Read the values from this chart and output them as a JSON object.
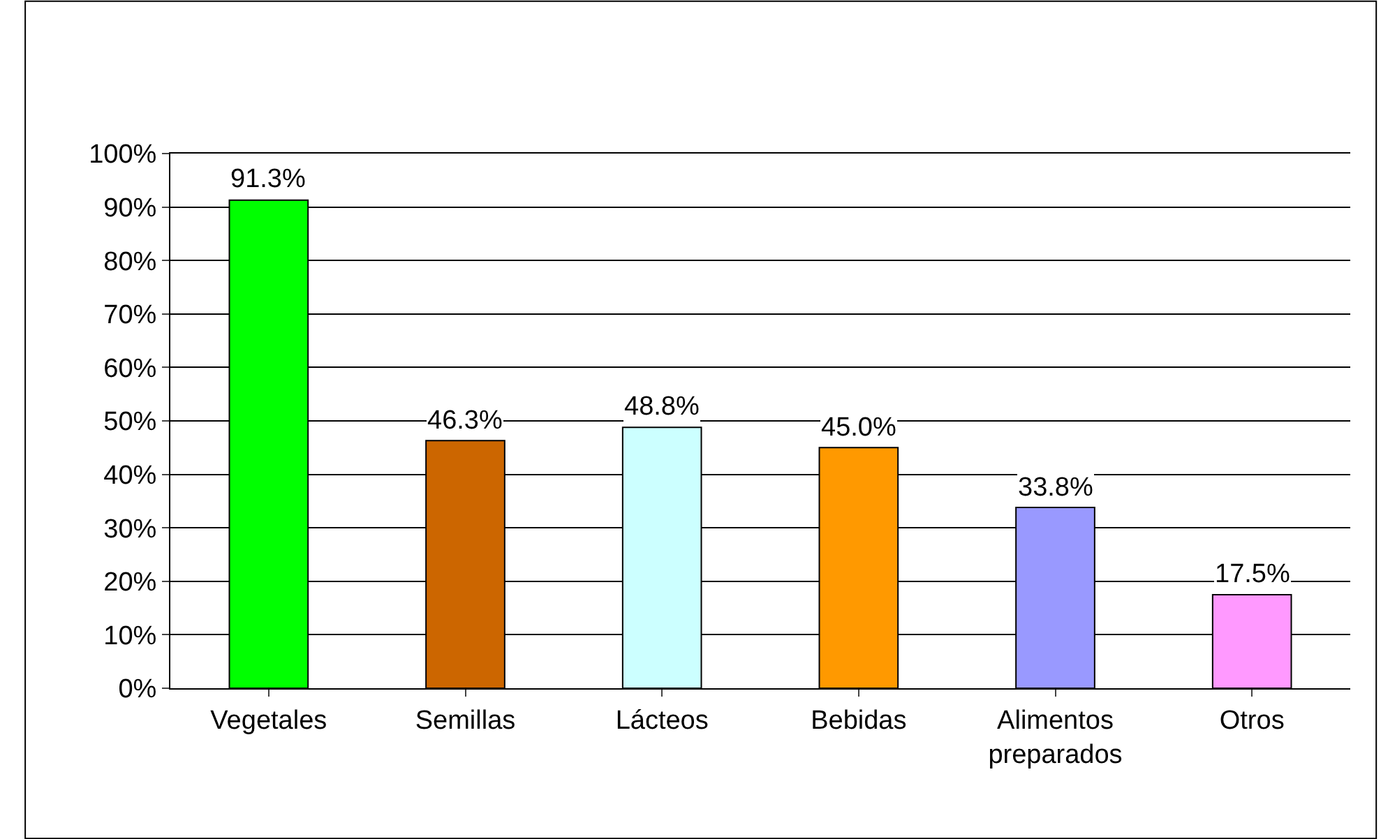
{
  "chart_data": {
    "type": "bar",
    "categories": [
      "Vegetales",
      "Semillas",
      "Lácteos",
      "Bebidas",
      "Alimentos preparados",
      "Otros"
    ],
    "values": [
      91.3,
      46.3,
      48.8,
      45.0,
      33.8,
      17.5
    ],
    "colors": [
      "#00ff00",
      "#cc6600",
      "#ccffff",
      "#ff9900",
      "#9999ff",
      "#ff99ff"
    ],
    "value_labels": [
      "91.3%",
      "46.3%",
      "48.8%",
      "45.0%",
      "33.8%",
      "17.5%"
    ],
    "ylim": [
      0,
      100
    ],
    "yticks": [
      {
        "value": 0,
        "label": "0%"
      },
      {
        "value": 10,
        "label": "10%"
      },
      {
        "value": 20,
        "label": "20%"
      },
      {
        "value": 30,
        "label": "30%"
      },
      {
        "value": 40,
        "label": "40%"
      },
      {
        "value": 50,
        "label": "50%"
      },
      {
        "value": 60,
        "label": "60%"
      },
      {
        "value": 70,
        "label": "70%"
      },
      {
        "value": 80,
        "label": "80%"
      },
      {
        "value": 90,
        "label": "90%"
      },
      {
        "value": 100,
        "label": "100%"
      }
    ],
    "grid": "y"
  }
}
